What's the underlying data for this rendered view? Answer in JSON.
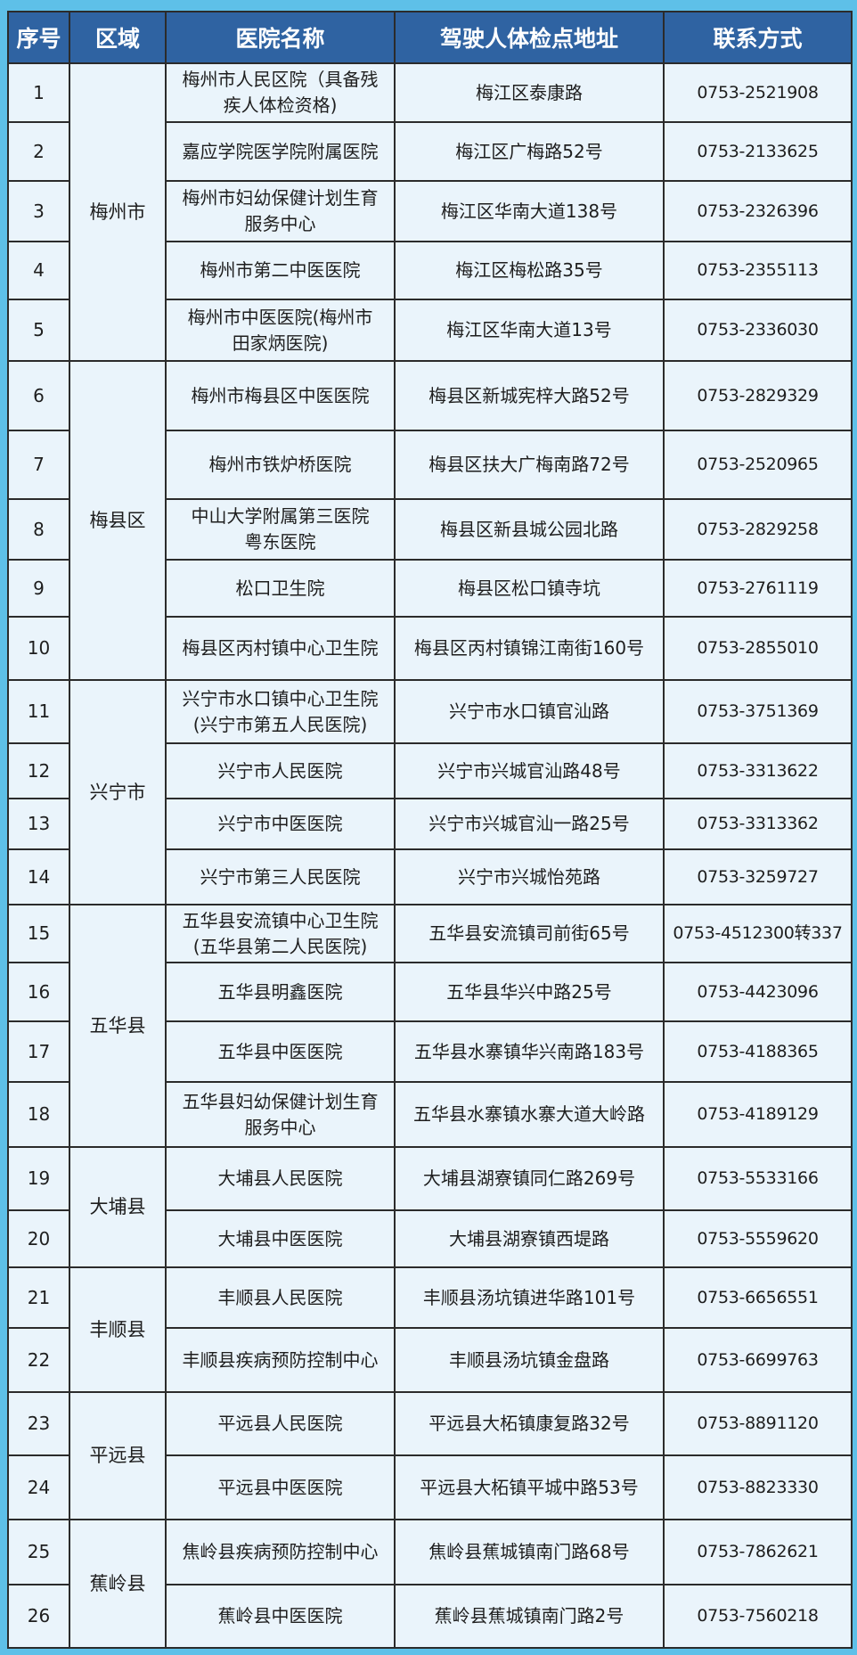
{
  "header": [
    "序号",
    "区域",
    "医院名称",
    "驾驶人体检点地址",
    "联系方式"
  ],
  "colors": {
    "header_bg": "#2f63a2",
    "cell_bg": "#eaf4fb",
    "page_bg": "#5ec0e8",
    "border": "#2b2b2b"
  },
  "regions": [
    {
      "name": "梅州市",
      "rows": [
        {
          "no": "1",
          "name": "梅州市人民区院（具备残\n疾人体检资格)",
          "address": "梅江区泰康路",
          "phone": "0753-2521908"
        },
        {
          "no": "2",
          "name": "嘉应学院医学院附属医院",
          "address": "梅江区广梅路52号",
          "phone": "0753-2133625"
        },
        {
          "no": "3",
          "name": "梅州市妇幼保健计划生育\n服务中心",
          "address": "梅江区华南大道138号",
          "phone": "0753-2326396"
        },
        {
          "no": "4",
          "name": "梅州市第二中医医院",
          "address": "梅江区梅松路35号",
          "phone": "0753-2355113"
        },
        {
          "no": "5",
          "name": "梅州市中医医院(梅州市\n田家炳医院)",
          "address": "梅江区华南大道13号",
          "phone": "0753-2336030"
        }
      ]
    },
    {
      "name": "梅县区",
      "rows": [
        {
          "no": "6",
          "name": "梅州市梅县区中医医院",
          "address": "梅县区新城宪梓大路52号",
          "phone": "0753-2829329"
        },
        {
          "no": "7",
          "name": "梅州市铁炉桥医院",
          "address": "梅县区扶大广梅南路72号",
          "phone": "0753-2520965"
        },
        {
          "no": "8",
          "name": "中山大学附属第三医院\n粤东医院",
          "address": "梅县区新县城公园北路",
          "phone": "0753-2829258"
        },
        {
          "no": "9",
          "name": "松口卫生院",
          "address": "梅县区松口镇寺坑",
          "phone": "0753-2761119"
        },
        {
          "no": "10",
          "name": "梅县区丙村镇中心卫生院",
          "address": "梅县区丙村镇锦江南街160号",
          "phone": "0753-2855010"
        }
      ]
    },
    {
      "name": "兴宁市",
      "rows": [
        {
          "no": "11",
          "name": "兴宁市水口镇中心卫生院\n(兴宁市第五人民医院)",
          "address": "兴宁市水口镇官汕路",
          "phone": "0753-3751369"
        },
        {
          "no": "12",
          "name": "兴宁市人民医院",
          "address": "兴宁市兴城官汕路48号",
          "phone": "0753-3313622"
        },
        {
          "no": "13",
          "name": "兴宁市中医医院",
          "address": "兴宁市兴城官汕一路25号",
          "phone": "0753-3313362"
        },
        {
          "no": "14",
          "name": "兴宁市第三人民医院",
          "address": "兴宁市兴城怡苑路",
          "phone": "0753-3259727"
        }
      ]
    },
    {
      "name": "五华县",
      "rows": [
        {
          "no": "15",
          "name": "五华县安流镇中心卫生院\n(五华县第二人民医院)",
          "address": "五华县安流镇司前街65号",
          "phone": "0753-4512300转337"
        },
        {
          "no": "16",
          "name": "五华县明鑫医院",
          "address": "五华县华兴中路25号",
          "phone": "0753-4423096"
        },
        {
          "no": "17",
          "name": "五华县中医医院",
          "address": "五华县水寨镇华兴南路183号",
          "phone": "0753-4188365"
        },
        {
          "no": "18",
          "name": "五华县妇幼保健计划生育\n服务中心",
          "address": "五华县水寨镇水寨大道大岭路",
          "phone": "0753-4189129"
        }
      ]
    },
    {
      "name": "大埔县",
      "rows": [
        {
          "no": "19",
          "name": "大埔县人民医院",
          "address": "大埔县湖寮镇同仁路269号",
          "phone": "0753-5533166"
        },
        {
          "no": "20",
          "name": "大埔县中医医院",
          "address": "大埔县湖寮镇西堤路",
          "phone": "0753-5559620"
        }
      ]
    },
    {
      "name": "丰顺县",
      "rows": [
        {
          "no": "21",
          "name": "丰顺县人民医院",
          "address": "丰顺县汤坑镇进华路101号",
          "phone": "0753-6656551"
        },
        {
          "no": "22",
          "name": "丰顺县疾病预防控制中心",
          "address": "丰顺县汤坑镇金盘路",
          "phone": "0753-6699763"
        }
      ]
    },
    {
      "name": "平远县",
      "rows": [
        {
          "no": "23",
          "name": "平远县人民医院",
          "address": "平远县大柘镇康复路32号",
          "phone": "0753-8891120"
        },
        {
          "no": "24",
          "name": "平远县中医医院",
          "address": "平远县大柘镇平城中路53号",
          "phone": "0753-8823330"
        }
      ]
    },
    {
      "name": "蕉岭县",
      "rows": [
        {
          "no": "25",
          "name": "焦岭县疾病预防控制中心",
          "address": "焦岭县蕉城镇南门路68号",
          "phone": "0753-7862621"
        },
        {
          "no": "26",
          "name": "蕉岭县中医医院",
          "address": "蕉岭县蕉城镇南门路2号",
          "phone": "0753-7560218"
        }
      ]
    }
  ]
}
